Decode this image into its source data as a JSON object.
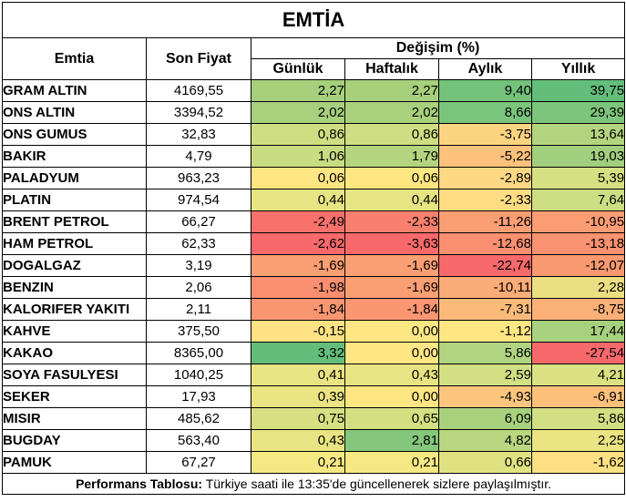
{
  "title": "EMTİA",
  "headers": {
    "commodity": "Emtia",
    "last_price": "Son Fiyat",
    "change": "Değişim (%)",
    "daily": "Günlük",
    "weekly": "Haftalık",
    "monthly": "Aylık",
    "yearly": "Yıllık"
  },
  "rows": [
    {
      "name": "GRAM ALTIN",
      "price": "4169,55",
      "daily": "2,27",
      "weekly": "2,27",
      "monthly": "9,40",
      "yearly": "39,75",
      "colors": [
        "#a6d07c",
        "#a6d07c",
        "#74c27b",
        "#63be7b"
      ]
    },
    {
      "name": "ONS ALTIN",
      "price": "3394,52",
      "daily": "2,02",
      "weekly": "2,02",
      "monthly": "8,66",
      "yearly": "29,39",
      "colors": [
        "#a8d07d",
        "#a8d07d",
        "#7bc47c",
        "#7dc57c"
      ]
    },
    {
      "name": "ONS GUMUS",
      "price": "32,83",
      "daily": "0,86",
      "weekly": "0,86",
      "monthly": "-3,75",
      "yearly": "13,64",
      "colors": [
        "#cfde82",
        "#cfde82",
        "#fcd481",
        "#b3d47f"
      ]
    },
    {
      "name": "BAKIR",
      "price": "4,79",
      "daily": "1,06",
      "weekly": "1,79",
      "monthly": "-5,22",
      "yearly": "19,03",
      "colors": [
        "#c9dc81",
        "#b4d47f",
        "#fcc27c",
        "#a1cf7e"
      ]
    },
    {
      "name": "PALADYUM",
      "price": "963,23",
      "daily": "0,06",
      "weekly": "0,06",
      "monthly": "-2,89",
      "yearly": "5,39",
      "colors": [
        "#fee683",
        "#fee683",
        "#fdd782",
        "#d5e082"
      ]
    },
    {
      "name": "PLATIN",
      "price": "974,54",
      "daily": "0,44",
      "weekly": "0,44",
      "monthly": "-2,33",
      "yearly": "7,64",
      "colors": [
        "#e6e483",
        "#e6e483",
        "#fddc82",
        "#cddd82"
      ]
    },
    {
      "name": "BRENT PETROL",
      "price": "66,27",
      "daily": "-2,49",
      "weekly": "-2,33",
      "monthly": "-11,26",
      "yearly": "-10,95",
      "colors": [
        "#f8716b",
        "#f8806e",
        "#fa9e74",
        "#fb9d74"
      ]
    },
    {
      "name": "HAM PETROL",
      "price": "62,33",
      "daily": "-2,62",
      "weekly": "-3,63",
      "monthly": "-12,68",
      "yearly": "-13,18",
      "colors": [
        "#f8696b",
        "#f8696b",
        "#fa8f71",
        "#f99270"
      ]
    },
    {
      "name": "DOGALGAZ",
      "price": "3,19",
      "daily": "-1,69",
      "weekly": "-1,69",
      "monthly": "-22,74",
      "yearly": "-12,07",
      "colors": [
        "#fa9e74",
        "#fa9e74",
        "#f8696b",
        "#f99971"
      ]
    },
    {
      "name": "BENZIN",
      "price": "2,06",
      "daily": "-1,98",
      "weekly": "-1,69",
      "monthly": "-10,11",
      "yearly": "2,28",
      "colors": [
        "#f98e70",
        "#fa9e74",
        "#fbac77",
        "#ecdf82"
      ]
    },
    {
      "name": "KALORIFER YAKITI",
      "price": "2,11",
      "daily": "-1,84",
      "weekly": "-1,84",
      "monthly": "-7,31",
      "yearly": "-8,75",
      "colors": [
        "#f99672",
        "#fb9673",
        "#fbba7a",
        "#fbb078"
      ]
    },
    {
      "name": "KAHVE",
      "price": "375,50",
      "daily": "-0,15",
      "weekly": "0,00",
      "monthly": "-1,12",
      "yearly": "17,44",
      "colors": [
        "#fee283",
        "#fee683",
        "#fee683",
        "#a7d17e"
      ]
    },
    {
      "name": "KAKAO",
      "price": "8365,00",
      "daily": "3,32",
      "weekly": "0,00",
      "monthly": "5,86",
      "yearly": "-27,54",
      "colors": [
        "#63be7b",
        "#fee683",
        "#b0d47f",
        "#f8696b"
      ]
    },
    {
      "name": "SOYA FASULYESI",
      "price": "1040,25",
      "daily": "0,41",
      "weekly": "0,43",
      "monthly": "2,59",
      "yearly": "4,21",
      "colors": [
        "#e9e483",
        "#e9e483",
        "#d2df82",
        "#dbe182"
      ]
    },
    {
      "name": "SEKER",
      "price": "17,93",
      "daily": "0,39",
      "weekly": "0,00",
      "monthly": "-4,93",
      "yearly": "-6,91",
      "colors": [
        "#eae483",
        "#fee683",
        "#fcc57d",
        "#fcc07b"
      ]
    },
    {
      "name": "MISIR",
      "price": "485,62",
      "daily": "0,75",
      "weekly": "0,65",
      "monthly": "6,09",
      "yearly": "5,86",
      "colors": [
        "#d6e082",
        "#d4df82",
        "#a8d17d",
        "#d2df82"
      ]
    },
    {
      "name": "BUGDAY",
      "price": "563,40",
      "daily": "0,43",
      "weekly": "2,81",
      "monthly": "4,82",
      "yearly": "2,25",
      "colors": [
        "#e8e483",
        "#84c77c",
        "#b9d680",
        "#eae483"
      ]
    },
    {
      "name": "PAMUK",
      "price": "67,27",
      "daily": "0,21",
      "weekly": "0,21",
      "monthly": "0,66",
      "yearly": "-1,62",
      "colors": [
        "#f6e883",
        "#f6e883",
        "#e0e282",
        "#fde083"
      ]
    }
  ],
  "footer": {
    "label": "Performans Tablosu:",
    "text": " Türkiye saati ile 13:35'de güncellenerek sizlere paylaşılmıştır."
  }
}
